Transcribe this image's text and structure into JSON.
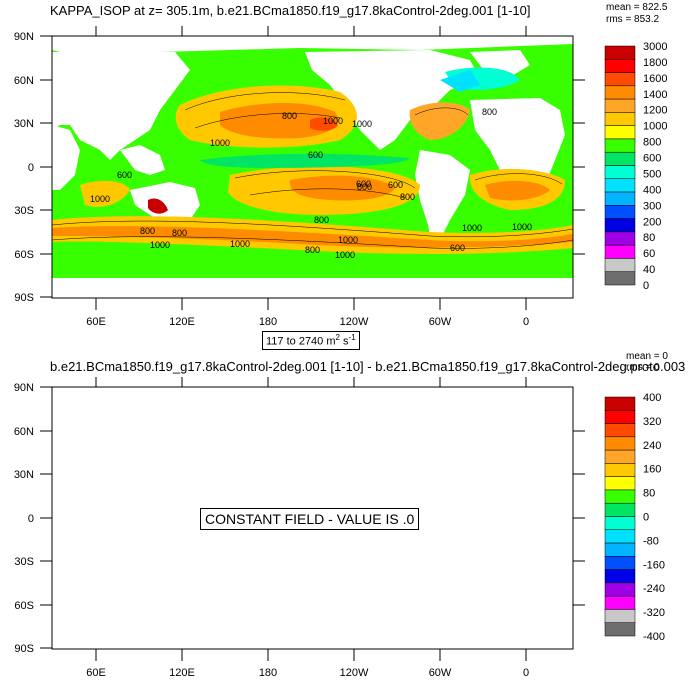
{
  "panel1": {
    "title": "KAPPA_ISOP at z= 305.1m, b.e21.BCma1850.f19_g17.8kaControl-2deg.001 [1-10]",
    "mean": "mean = 822.5",
    "rms": "rms = 853.2",
    "range": "117 to 2740 m",
    "range_sup": "2",
    "range_unit2": " s",
    "range_sup2": "-1",
    "colorbar_labels": [
      "3000",
      "1800",
      "1600",
      "1400",
      "1200",
      "1000",
      "800",
      "600",
      "500",
      "400",
      "300",
      "200",
      "80",
      "60",
      "40",
      "0"
    ],
    "colorbar_colors": [
      "#c80000",
      "#ff0000",
      "#ff4a00",
      "#ff8c00",
      "#ffa628",
      "#ffc800",
      "#ffff00",
      "#37ff00",
      "#00e664",
      "#00ffd2",
      "#00e1ff",
      "#00b4ff",
      "#0050ff",
      "#0000e6",
      "#a000e6",
      "#ff00ff",
      "#c8c8c8",
      "#6e6e6e"
    ],
    "contour_labels": [
      "800",
      "1000",
      "1000",
      "600",
      "600",
      "1000",
      "800",
      "1000",
      "800",
      "800",
      "600",
      "800",
      "1000",
      "600",
      "1000",
      "1000",
      "800",
      "1000",
      "1000",
      "600",
      "800",
      "800",
      "1000"
    ]
  },
  "panel2": {
    "title": "b.e21.BCma1850.f19_g17.8kaControl-2deg.001 [1-10] - b.e21.BCma1850.f19_g17.8kaControl-2deg.proto.003",
    "mean": "mean = 0",
    "rms": "rms = 0",
    "message": "CONSTANT FIELD - VALUE IS .0",
    "colorbar_labels": [
      "400",
      "320",
      "240",
      "160",
      "80",
      "0",
      "-80",
      "-160",
      "-240",
      "-320",
      "-400"
    ],
    "colorbar_colors": [
      "#c80000",
      "#ff0000",
      "#ff4a00",
      "#ff8c00",
      "#ffa628",
      "#ffc800",
      "#ffff00",
      "#37ff00",
      "#00e664",
      "#00ffd2",
      "#00e1ff",
      "#00b4ff",
      "#0050ff",
      "#0000e6",
      "#a000e6",
      "#ff00ff",
      "#c8c8c8",
      "#6e6e6e"
    ]
  },
  "axes": {
    "lat_labels": [
      "90N",
      "60N",
      "30N",
      "0",
      "30S",
      "60S",
      "90S"
    ],
    "lon_labels": [
      "60E",
      "120E",
      "180",
      "120W",
      "60W",
      "0"
    ]
  }
}
